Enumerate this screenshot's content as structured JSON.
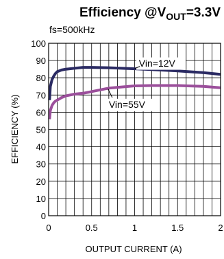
{
  "chart_data": {
    "type": "line",
    "title_main": "Efficiency @V",
    "title_sub": "OUT",
    "title_tail": "=3.3V",
    "subtitle": "fs=500kHz",
    "xlabel": "OUTPUT CURRENT (A)",
    "ylabel": "EFFICIENCY (%)",
    "xlim": [
      0,
      2
    ],
    "ylim": [
      0,
      100
    ],
    "xticks": [
      0,
      0.5,
      1,
      1.5,
      2
    ],
    "xtick_labels": [
      "0",
      "0.5",
      "1",
      "1.5",
      "2"
    ],
    "yticks": [
      0,
      10,
      20,
      30,
      40,
      50,
      60,
      70,
      80,
      90,
      100
    ],
    "ytick_labels": [
      "0",
      "10",
      "20",
      "30",
      "40",
      "50",
      "60",
      "70",
      "80",
      "90",
      "100"
    ],
    "grid": true,
    "series": [
      {
        "name": "Vin=12V",
        "color": "#2b2b63",
        "x": [
          0.01,
          0.02,
          0.04,
          0.06,
          0.08,
          0.1,
          0.15,
          0.2,
          0.3,
          0.4,
          0.5,
          0.7,
          1.0,
          1.2,
          1.5,
          1.8,
          2.0
        ],
        "y": [
          67,
          75,
          79,
          81,
          82.5,
          83.5,
          84.5,
          85,
          85.5,
          86,
          86,
          85.8,
          85.2,
          84.8,
          84,
          83,
          82
        ]
      },
      {
        "name": "Vin=55V",
        "color": "#9b4f9b",
        "x": [
          0.01,
          0.02,
          0.04,
          0.06,
          0.08,
          0.1,
          0.15,
          0.2,
          0.3,
          0.4,
          0.5,
          0.7,
          1.0,
          1.2,
          1.5,
          1.8,
          2.0
        ],
        "y": [
          56,
          61,
          64,
          65.5,
          66.5,
          67,
          68.5,
          69.5,
          70.5,
          71,
          72,
          74,
          75.3,
          75.5,
          75.5,
          75,
          74.2
        ]
      }
    ]
  }
}
